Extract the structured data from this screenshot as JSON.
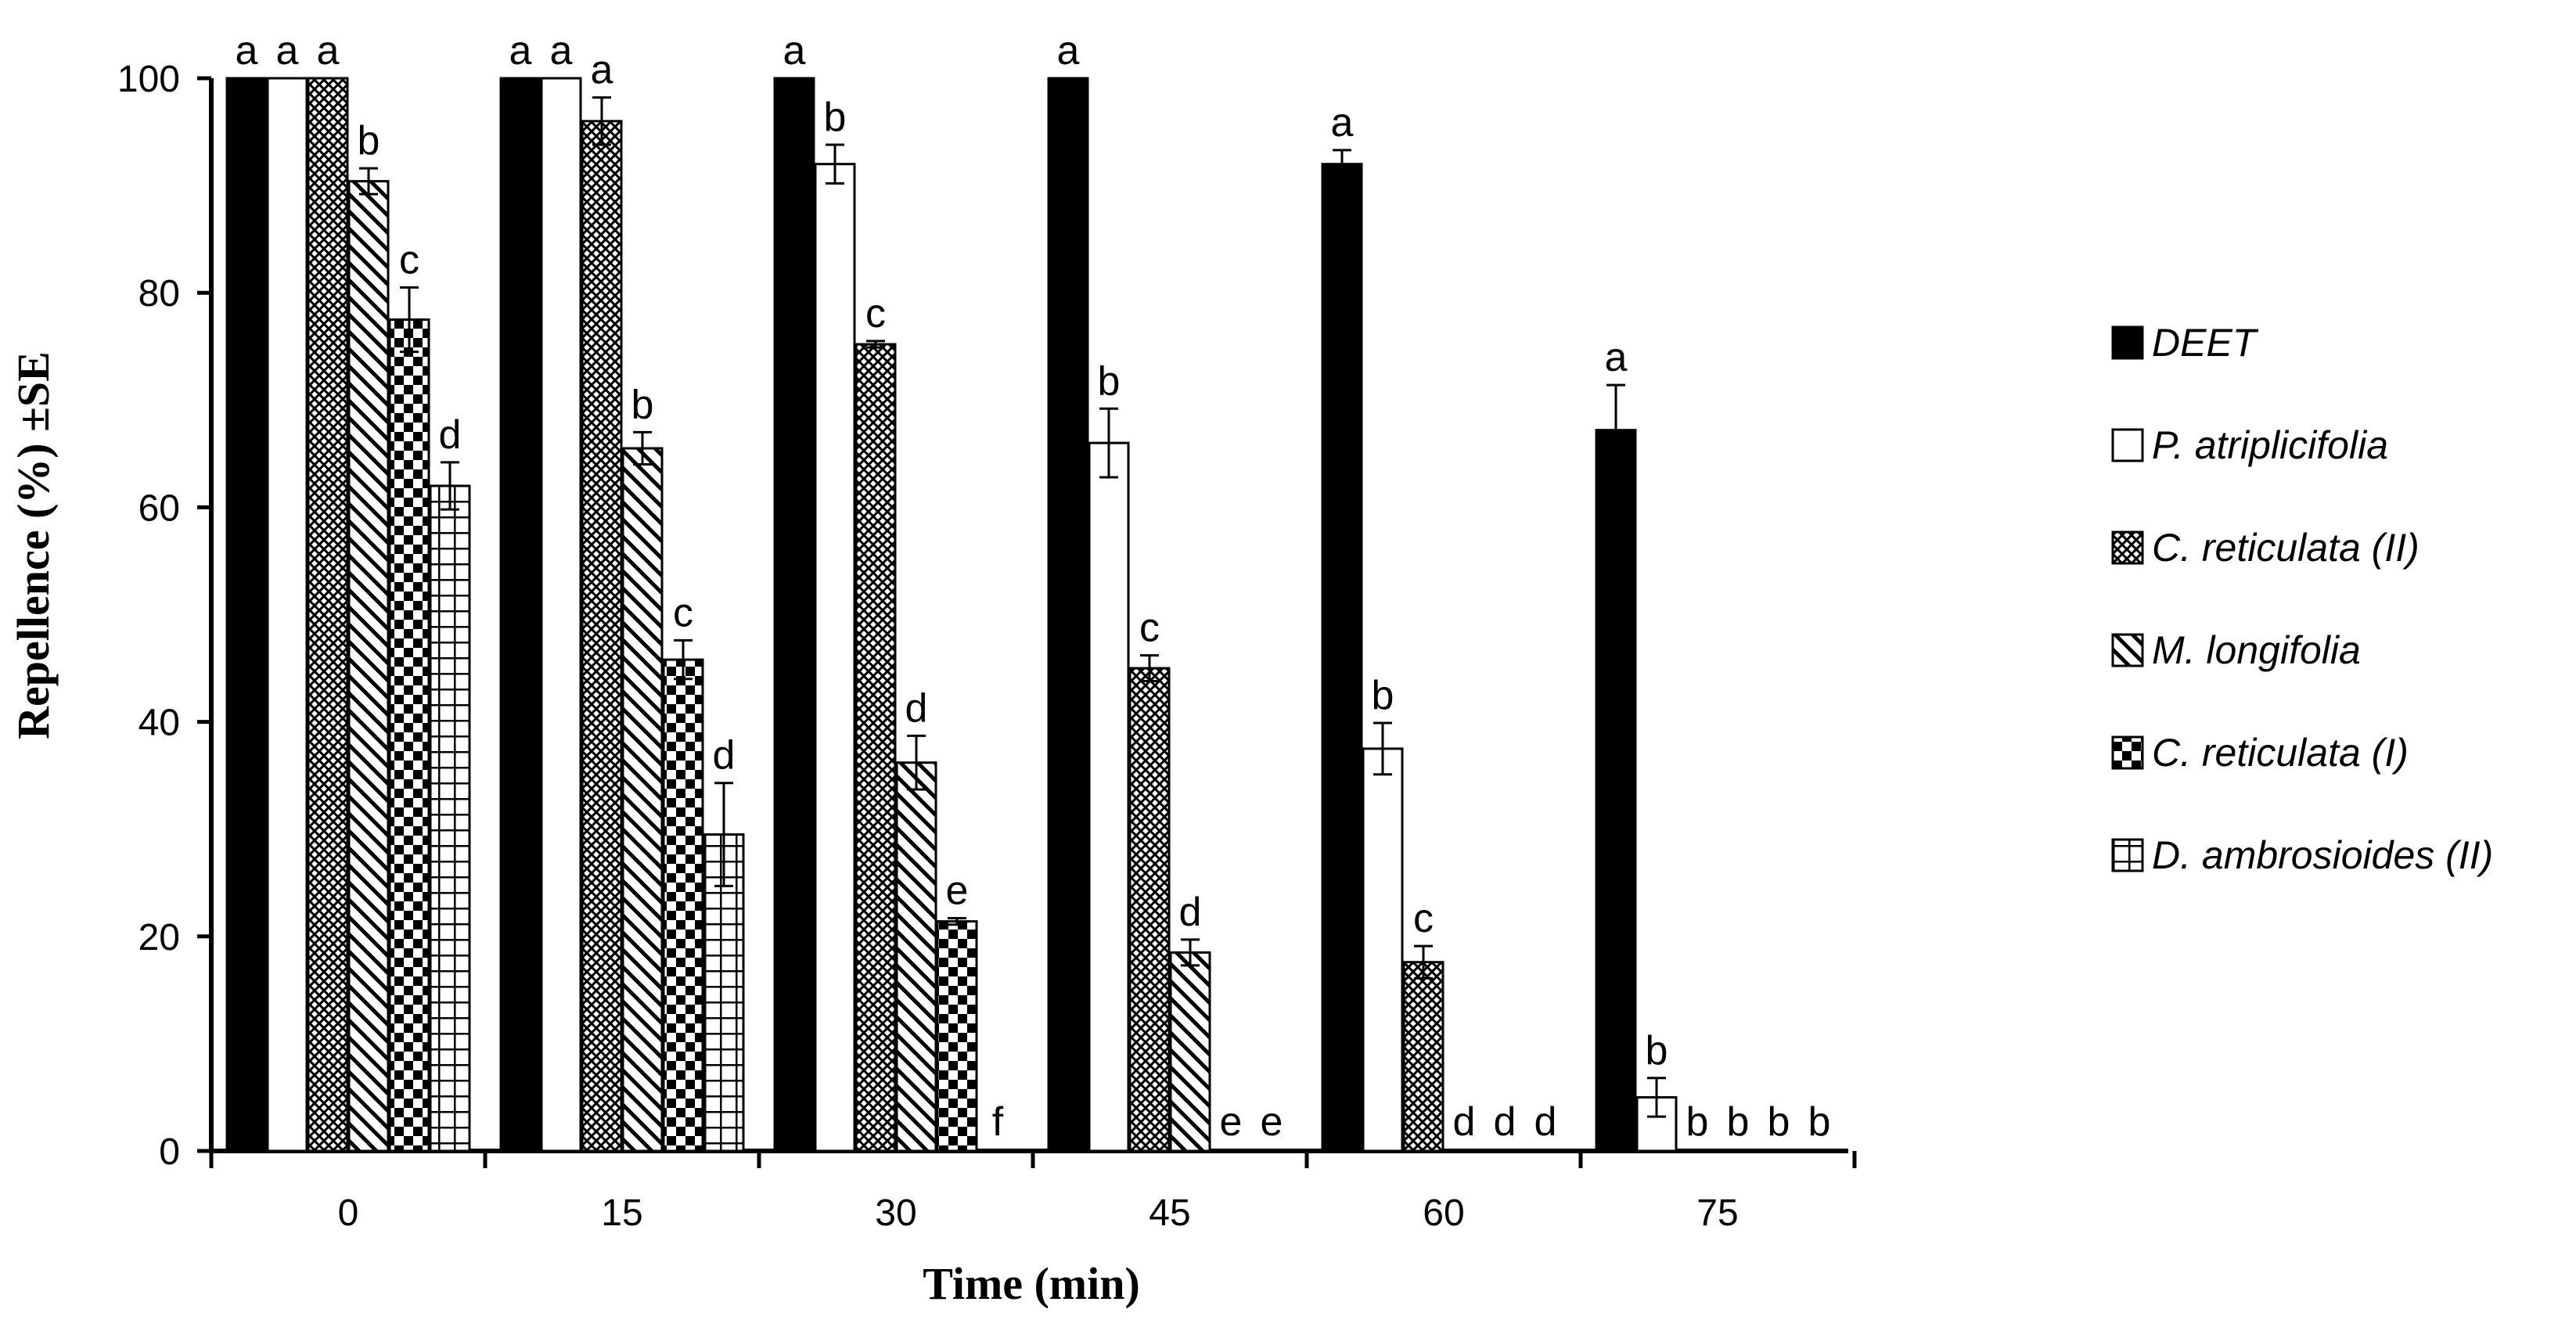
{
  "chart_data": {
    "type": "bar",
    "title": "",
    "xlabel": "Time (min)",
    "ylabel": "Repellence (%) ±SE",
    "ylim": [
      0,
      100
    ],
    "yticks": [
      "0",
      "20",
      "40",
      "60",
      "80",
      "100"
    ],
    "grid": false,
    "legend_position": "right",
    "categories": [
      "0",
      "15",
      "30",
      "45",
      "60",
      "75"
    ],
    "series": [
      {
        "name": "DEET",
        "pattern": "solid",
        "values": [
          100,
          100,
          100,
          100,
          92,
          67.2
        ],
        "errors": [
          0,
          0,
          0,
          0,
          1.3,
          4.2
        ],
        "letters": [
          "a",
          "a",
          "a",
          "a",
          "a",
          "a"
        ]
      },
      {
        "name": "P. atriplicifolia",
        "pattern": "white",
        "values": [
          100,
          100,
          92,
          66,
          37.5,
          5
        ],
        "errors": [
          0,
          0,
          1.8,
          3.2,
          2.4,
          1.8
        ],
        "letters": [
          "a",
          "a",
          "b",
          "b",
          "b",
          "b"
        ]
      },
      {
        "name": "C. reticulata (II)",
        "pattern": "crosshatch",
        "values": [
          100,
          96,
          75.2,
          45,
          17.6,
          0
        ],
        "errors": [
          0,
          2.2,
          0.3,
          1.2,
          1.5,
          0
        ],
        "letters": [
          "a",
          "a",
          "c",
          "c",
          "c",
          "b"
        ]
      },
      {
        "name": "M. longifolia",
        "pattern": "diagonal",
        "values": [
          90.4,
          65.5,
          36.2,
          18.5,
          0,
          0
        ],
        "errors": [
          1.2,
          1.5,
          2.5,
          1.2,
          0,
          0
        ],
        "letters": [
          "b",
          "b",
          "d",
          "d",
          "d",
          "b"
        ]
      },
      {
        "name": "C. reticulata (I)",
        "pattern": "checker",
        "values": [
          77.5,
          45.8,
          21.4,
          0,
          0,
          0
        ],
        "errors": [
          3,
          1.8,
          0.3,
          0,
          0,
          0
        ],
        "letters": [
          "c",
          "c",
          "e",
          "e",
          "d",
          "b"
        ]
      },
      {
        "name": "D. ambrosioides (II)",
        "pattern": "grid",
        "values": [
          62,
          29.5,
          0,
          0,
          0,
          0
        ],
        "errors": [
          2.2,
          4.8,
          0,
          0,
          0,
          0
        ],
        "letters": [
          "d",
          "d",
          "f",
          "e",
          "d",
          "b"
        ]
      }
    ],
    "colors": {
      "bar_fill": "#000000",
      "bar_stroke": "#000000",
      "background": "#ffffff"
    }
  }
}
